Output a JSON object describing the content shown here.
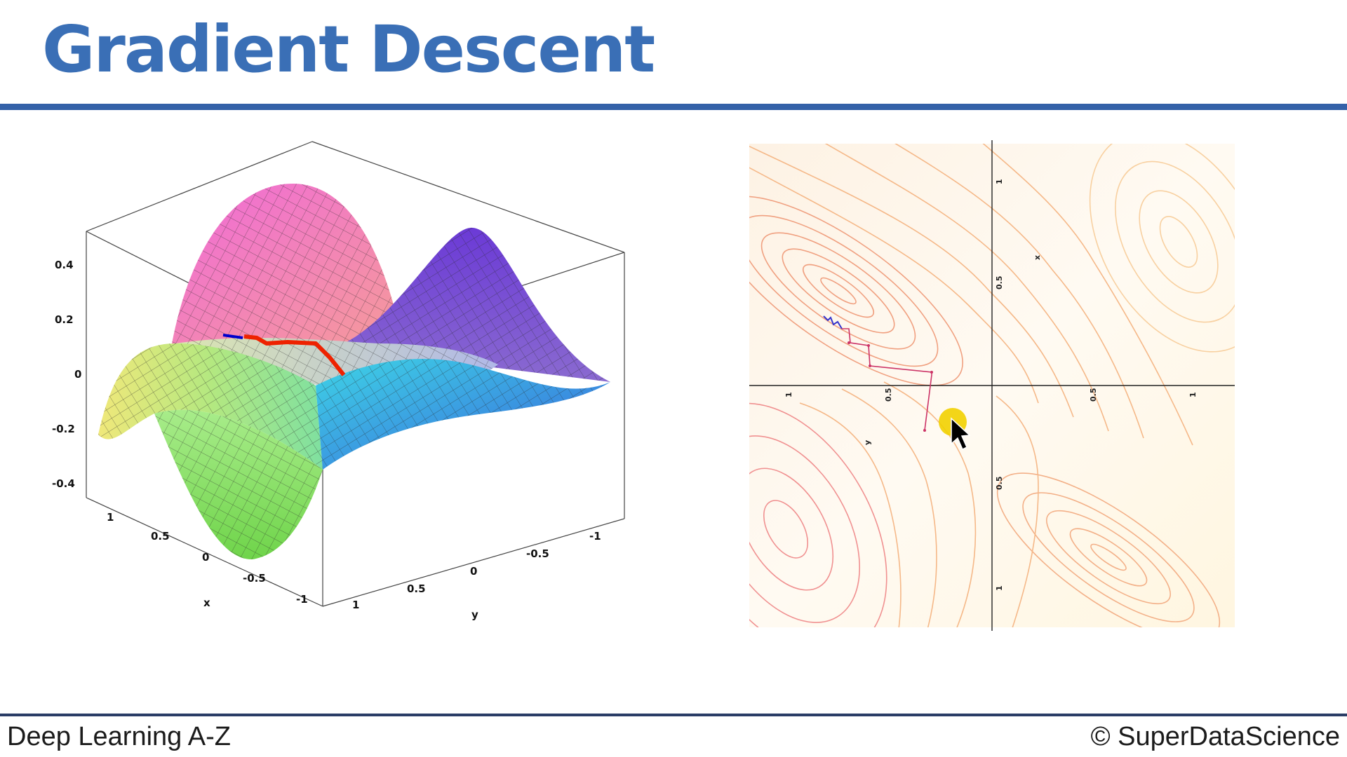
{
  "slide": {
    "title": "Gradient Descent",
    "footer_left": "Deep Learning A-Z",
    "footer_right": "© SuperDataScience",
    "accent_color": "#3a6fb6",
    "rule_color": "#3461a8"
  },
  "chart_data": [
    {
      "type": "surface",
      "z_ticks": [
        "0.4",
        "0.2",
        "0",
        "-0.2",
        "-0.4"
      ],
      "x_ticks": [
        "1",
        "0.5",
        "0",
        "-0.5",
        "-1"
      ],
      "y_ticks": [
        "1",
        "0.5",
        "0",
        "-0.5",
        "-1"
      ],
      "xlabel": "x",
      "ylabel": "y",
      "path_colors": [
        "#0000cc",
        "#ee2200"
      ]
    },
    {
      "type": "contour",
      "x_ticks": [
        "1",
        "0.5",
        "0.5",
        "1"
      ],
      "y_ticks": [
        "1",
        "0.5",
        "0.5",
        "1"
      ],
      "xlabel": "x",
      "ylabel": "y",
      "path_colors": [
        "#3333cc",
        "#cc3366"
      ]
    }
  ]
}
